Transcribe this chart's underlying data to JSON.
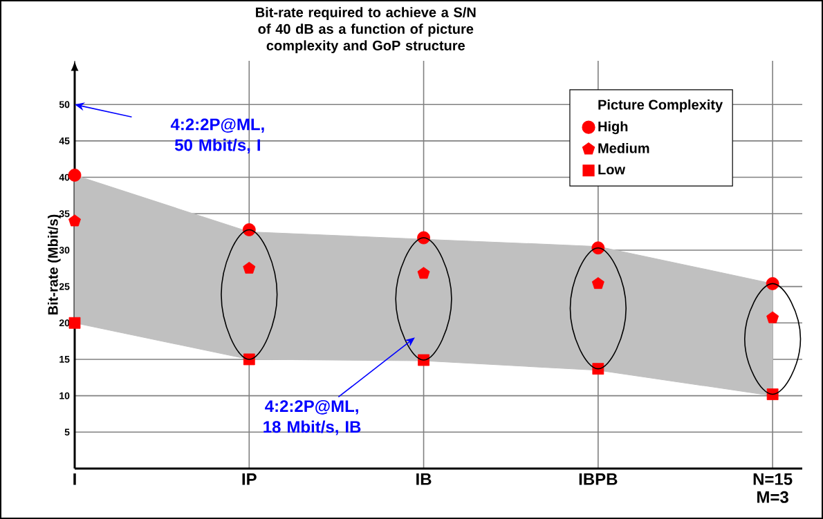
{
  "chart_data": {
    "type": "scatter",
    "title": "Bit-rate required to achieve a S/N of 40 dB as a function of picture complexity and GoP structure",
    "ylabel": "Bit-rate (Mbit/s)",
    "legend_title": "Picture Complexity",
    "categories": [
      "I",
      "IP",
      "IB",
      "IBPB",
      "N=15 M=3"
    ],
    "series": [
      {
        "name": "High",
        "color": "#ff0000",
        "marker": "circle",
        "values": [
          40.3,
          32.8,
          31.7,
          30.3,
          25.4
        ]
      },
      {
        "name": "Medium",
        "color": "#ff0000",
        "values": [
          34.0,
          27.5,
          26.8,
          25.4,
          20.7
        ]
      },
      {
        "name": "Low",
        "color": "#ff0000",
        "marker": "square",
        "values": [
          20.0,
          15.0,
          14.9,
          13.7,
          10.2
        ]
      },
      {
        "type": "line",
        "color": "#c0c0c0",
        "values": [
          null,
          null,
          null,
          null,
          null
        ],
        "upper": [
          40.3,
          32.5,
          31.5,
          30.5,
          25.4
        ],
        "lower": [
          20.0,
          15.0,
          14.8,
          13.5,
          10.0
        ]
      }
    ],
    "ylim": [
      0,
      56
    ],
    "yticks": [
      5,
      10,
      15,
      20,
      25,
      30,
      35,
      40,
      45,
      50
    ],
    "grid": true,
    "legend": "top right",
    "annotations": [
      "4:2:2P@ML, 50 Mbit/s, I",
      "4:2:2P@ML, 18 Mbit/s, IB"
    ]
  }
}
